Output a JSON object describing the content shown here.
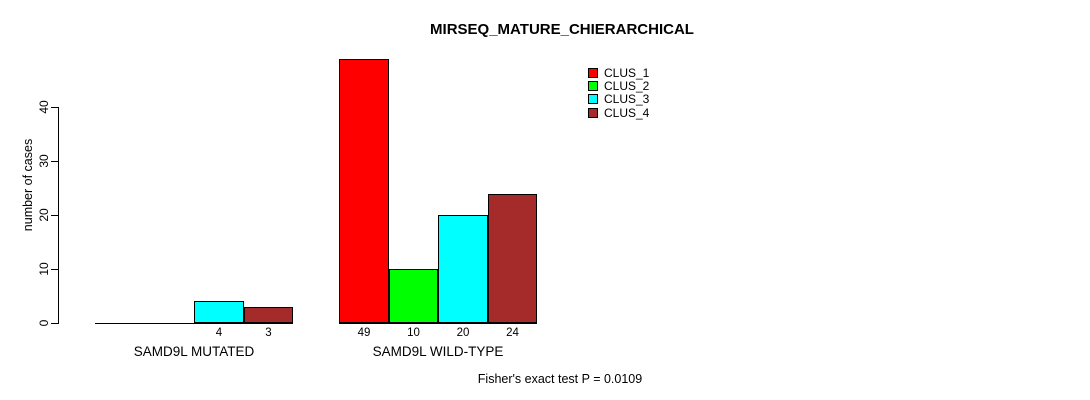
{
  "chart_data": {
    "type": "bar",
    "title": "MIRSEQ_MATURE_CHIERARCHICAL",
    "ylabel": "number of cases",
    "ylim": [
      0,
      40
    ],
    "yticks": [
      0,
      10,
      20,
      30,
      40
    ],
    "grid": false,
    "legend_position": "top-right",
    "legend": [
      {
        "name": "CLUS_1",
        "color": "#FF0000"
      },
      {
        "name": "CLUS_2",
        "color": "#00FF00"
      },
      {
        "name": "CLUS_3",
        "color": "#00FFFF"
      },
      {
        "name": "CLUS_4",
        "color": "#A52A2A"
      }
    ],
    "groups": [
      {
        "label": "SAMD9L MUTATED",
        "series": [
          "CLUS_1",
          "CLUS_2",
          "CLUS_3",
          "CLUS_4"
        ],
        "values": [
          0,
          0,
          4,
          3
        ],
        "bar_labels": [
          "",
          "",
          "4",
          "3"
        ]
      },
      {
        "label": "SAMD9L WILD-TYPE",
        "series": [
          "CLUS_1",
          "CLUS_2",
          "CLUS_3",
          "CLUS_4"
        ],
        "values": [
          49,
          10,
          20,
          24
        ],
        "bar_labels": [
          "49",
          "10",
          "20",
          "24"
        ]
      }
    ],
    "annotation": "Fisher's exact test P = 0.0109"
  }
}
